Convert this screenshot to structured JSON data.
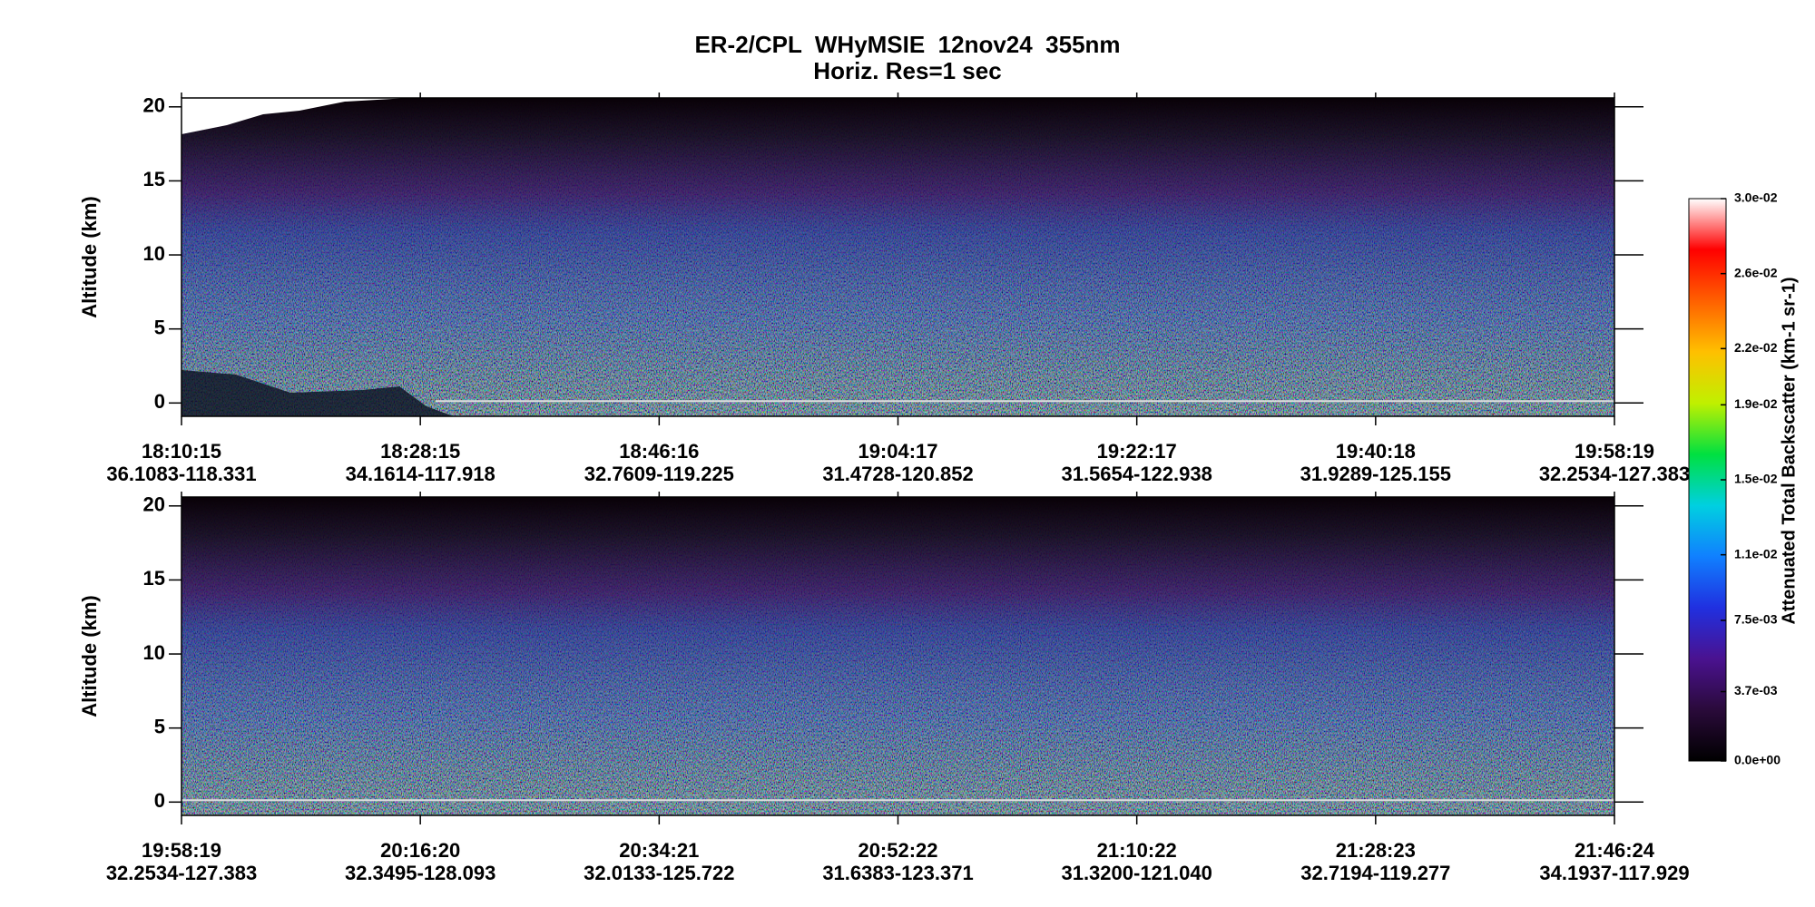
{
  "title": "ER-2/CPL  WHyMSIE  12nov24  355nm",
  "subtitle": "Horiz. Res=1 sec",
  "chart_data": [
    {
      "type": "heatmap",
      "ylabel": "Altitude (km)",
      "ylim": [
        -0.9,
        20.6
      ],
      "yticks": [
        0,
        5,
        10,
        15,
        20
      ],
      "x": [
        "18:10:15",
        "18:28:15",
        "18:46:16",
        "19:04:17",
        "19:22:17",
        "19:40:18",
        "19:58:19"
      ],
      "x_location": [
        "36.1083-118.331",
        "34.1614-117.918",
        "32.7609-119.225",
        "31.4728-120.852",
        "31.5654-122.938",
        "31.9289-125.155",
        "32.2534-127.383"
      ]
    },
    {
      "type": "heatmap",
      "ylabel": "Altitude (km)",
      "ylim": [
        -0.9,
        20.6
      ],
      "yticks": [
        0,
        5,
        10,
        15,
        20
      ],
      "x": [
        "19:58:19",
        "20:16:20",
        "20:34:21",
        "20:52:22",
        "21:10:22",
        "21:28:23",
        "21:46:24"
      ],
      "x_location": [
        "32.2534-127.383",
        "32.3495-128.093",
        "32.0133-125.722",
        "31.6383-123.371",
        "31.3200-121.040",
        "32.7194-119.277",
        "34.1937-117.929"
      ]
    }
  ],
  "colorbar": {
    "label": "Attenuated Total Backscatter (km-1 sr-1)",
    "lim": [
      0,
      0.03
    ],
    "colors": [
      "#000000",
      "#2a0a3a",
      "#4a1290",
      "#2030e0",
      "#1080ff",
      "#00d0e0",
      "#00e040",
      "#c0f000",
      "#ffc000",
      "#ff6000",
      "#ff0000",
      "#ffffff"
    ],
    "ticks": [
      {
        "value": 0,
        "label": "0.0e+00"
      },
      {
        "value": 0.0037,
        "label": "3.7e-03"
      },
      {
        "value": 0.0075,
        "label": "7.5e-03"
      },
      {
        "value": 0.011,
        "label": "1.1e-02"
      },
      {
        "value": 0.015,
        "label": "1.5e-02"
      },
      {
        "value": 0.019,
        "label": "1.9e-02"
      },
      {
        "value": 0.022,
        "label": "2.2e-02"
      },
      {
        "value": 0.026,
        "label": "2.6e-02"
      },
      {
        "value": 0.03,
        "label": "3.0e-02"
      }
    ]
  }
}
